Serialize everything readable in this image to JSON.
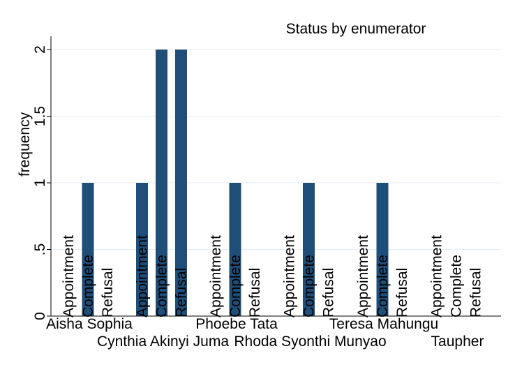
{
  "chart_data": {
    "type": "bar",
    "title": "Status by enumerator",
    "xlabel": "",
    "ylabel": "frequency",
    "ylim": [
      0,
      2
    ],
    "yticks": [
      {
        "value": 0,
        "label": "0"
      },
      {
        "value": 0.5,
        "label": ".5"
      },
      {
        "value": 1,
        "label": "1"
      },
      {
        "value": 1.5,
        "label": "1.5"
      },
      {
        "value": 2,
        "label": "2"
      }
    ],
    "grid": true,
    "bar_color": "#1f4e79",
    "categories": [
      "Appointment",
      "Complete",
      "Refusal"
    ],
    "groups": [
      {
        "name": "Aisha Sophia",
        "values": [
          0,
          1,
          0
        ]
      },
      {
        "name": "Cynthia Akinyi Juma",
        "values": [
          1,
          2,
          2
        ]
      },
      {
        "name": "Phoebe Tata",
        "values": [
          0,
          1,
          0
        ]
      },
      {
        "name": "Rhoda Syonthi Munyao",
        "values": [
          0,
          1,
          0
        ]
      },
      {
        "name": "Teresa Mahungu",
        "values": [
          0,
          1,
          0
        ]
      },
      {
        "name": "Taupher",
        "values": [
          0,
          0,
          0
        ]
      }
    ]
  }
}
